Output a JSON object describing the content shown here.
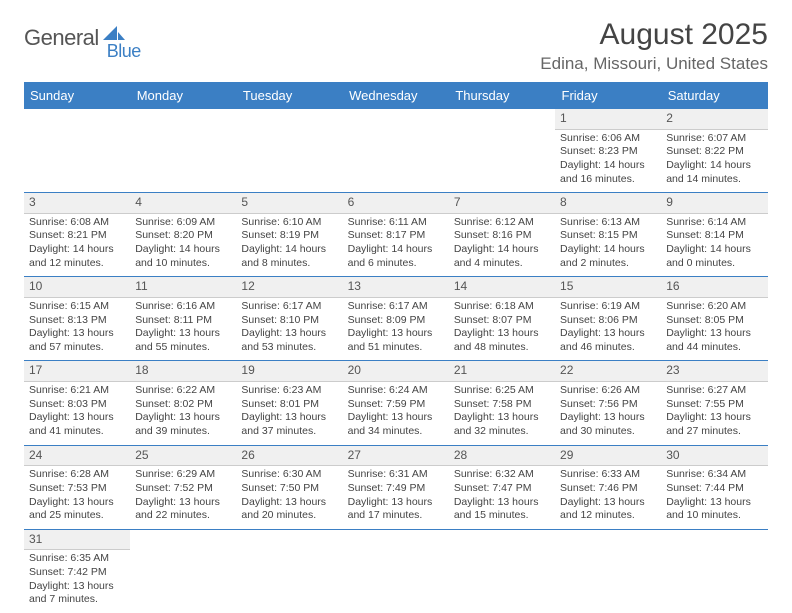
{
  "logo": {
    "part1": "General",
    "part2": "Blue"
  },
  "title": "August 2025",
  "location": "Edina, Missouri, United States",
  "colors": {
    "header_bg": "#3b7fc4",
    "header_text": "#ffffff",
    "daynum_bg": "#f0f0f0",
    "daynum_border": "#cccccc",
    "row_border": "#3b7fc4",
    "text": "#444444",
    "logo_gray": "#555555",
    "logo_blue": "#3b7fc4"
  },
  "day_headers": [
    "Sunday",
    "Monday",
    "Tuesday",
    "Wednesday",
    "Thursday",
    "Friday",
    "Saturday"
  ],
  "weeks": [
    [
      null,
      null,
      null,
      null,
      null,
      {
        "n": "1",
        "sr": "6:06 AM",
        "ss": "8:23 PM",
        "dl": "14 hours and 16 minutes."
      },
      {
        "n": "2",
        "sr": "6:07 AM",
        "ss": "8:22 PM",
        "dl": "14 hours and 14 minutes."
      }
    ],
    [
      {
        "n": "3",
        "sr": "6:08 AM",
        "ss": "8:21 PM",
        "dl": "14 hours and 12 minutes."
      },
      {
        "n": "4",
        "sr": "6:09 AM",
        "ss": "8:20 PM",
        "dl": "14 hours and 10 minutes."
      },
      {
        "n": "5",
        "sr": "6:10 AM",
        "ss": "8:19 PM",
        "dl": "14 hours and 8 minutes."
      },
      {
        "n": "6",
        "sr": "6:11 AM",
        "ss": "8:17 PM",
        "dl": "14 hours and 6 minutes."
      },
      {
        "n": "7",
        "sr": "6:12 AM",
        "ss": "8:16 PM",
        "dl": "14 hours and 4 minutes."
      },
      {
        "n": "8",
        "sr": "6:13 AM",
        "ss": "8:15 PM",
        "dl": "14 hours and 2 minutes."
      },
      {
        "n": "9",
        "sr": "6:14 AM",
        "ss": "8:14 PM",
        "dl": "14 hours and 0 minutes."
      }
    ],
    [
      {
        "n": "10",
        "sr": "6:15 AM",
        "ss": "8:13 PM",
        "dl": "13 hours and 57 minutes."
      },
      {
        "n": "11",
        "sr": "6:16 AM",
        "ss": "8:11 PM",
        "dl": "13 hours and 55 minutes."
      },
      {
        "n": "12",
        "sr": "6:17 AM",
        "ss": "8:10 PM",
        "dl": "13 hours and 53 minutes."
      },
      {
        "n": "13",
        "sr": "6:17 AM",
        "ss": "8:09 PM",
        "dl": "13 hours and 51 minutes."
      },
      {
        "n": "14",
        "sr": "6:18 AM",
        "ss": "8:07 PM",
        "dl": "13 hours and 48 minutes."
      },
      {
        "n": "15",
        "sr": "6:19 AM",
        "ss": "8:06 PM",
        "dl": "13 hours and 46 minutes."
      },
      {
        "n": "16",
        "sr": "6:20 AM",
        "ss": "8:05 PM",
        "dl": "13 hours and 44 minutes."
      }
    ],
    [
      {
        "n": "17",
        "sr": "6:21 AM",
        "ss": "8:03 PM",
        "dl": "13 hours and 41 minutes."
      },
      {
        "n": "18",
        "sr": "6:22 AM",
        "ss": "8:02 PM",
        "dl": "13 hours and 39 minutes."
      },
      {
        "n": "19",
        "sr": "6:23 AM",
        "ss": "8:01 PM",
        "dl": "13 hours and 37 minutes."
      },
      {
        "n": "20",
        "sr": "6:24 AM",
        "ss": "7:59 PM",
        "dl": "13 hours and 34 minutes."
      },
      {
        "n": "21",
        "sr": "6:25 AM",
        "ss": "7:58 PM",
        "dl": "13 hours and 32 minutes."
      },
      {
        "n": "22",
        "sr": "6:26 AM",
        "ss": "7:56 PM",
        "dl": "13 hours and 30 minutes."
      },
      {
        "n": "23",
        "sr": "6:27 AM",
        "ss": "7:55 PM",
        "dl": "13 hours and 27 minutes."
      }
    ],
    [
      {
        "n": "24",
        "sr": "6:28 AM",
        "ss": "7:53 PM",
        "dl": "13 hours and 25 minutes."
      },
      {
        "n": "25",
        "sr": "6:29 AM",
        "ss": "7:52 PM",
        "dl": "13 hours and 22 minutes."
      },
      {
        "n": "26",
        "sr": "6:30 AM",
        "ss": "7:50 PM",
        "dl": "13 hours and 20 minutes."
      },
      {
        "n": "27",
        "sr": "6:31 AM",
        "ss": "7:49 PM",
        "dl": "13 hours and 17 minutes."
      },
      {
        "n": "28",
        "sr": "6:32 AM",
        "ss": "7:47 PM",
        "dl": "13 hours and 15 minutes."
      },
      {
        "n": "29",
        "sr": "6:33 AM",
        "ss": "7:46 PM",
        "dl": "13 hours and 12 minutes."
      },
      {
        "n": "30",
        "sr": "6:34 AM",
        "ss": "7:44 PM",
        "dl": "13 hours and 10 minutes."
      }
    ],
    [
      {
        "n": "31",
        "sr": "6:35 AM",
        "ss": "7:42 PM",
        "dl": "13 hours and 7 minutes."
      },
      null,
      null,
      null,
      null,
      null,
      null
    ]
  ],
  "labels": {
    "sunrise": "Sunrise:",
    "sunset": "Sunset:",
    "daylight": "Daylight:"
  }
}
